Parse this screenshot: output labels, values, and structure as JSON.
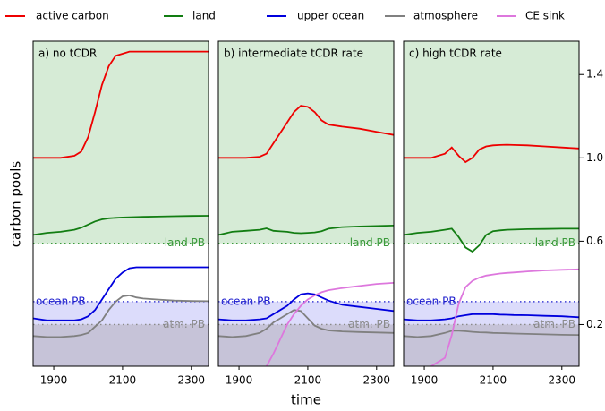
{
  "x_label": "time",
  "y_label": "carbon pools",
  "chart_data": [
    {
      "type": "line",
      "title": "a) no tCDR",
      "x": [
        1840,
        1880,
        1920,
        1960,
        1980,
        2000,
        2020,
        2040,
        2060,
        2080,
        2100,
        2120,
        2140,
        2160,
        2200,
        2250,
        2300,
        2350
      ],
      "xlim": [
        1840,
        2350
      ],
      "xticks": [
        1900,
        2100,
        2300
      ],
      "ylim": [
        0,
        1.56
      ],
      "boundaries": [
        {
          "label": "land PB",
          "value": 0.59,
          "color": "#3c9a3c",
          "fill": "#d6ebd6"
        },
        {
          "label": "ocean PB",
          "value": 0.31,
          "color": "#1a1acd",
          "fill": "#dcdcfb"
        },
        {
          "label": "atm. PB",
          "value": 0.2,
          "color": "#8a8a8a",
          "fill": "#c6c3d8"
        }
      ],
      "series": [
        {
          "color": "#ee0000",
          "values": [
            1.0,
            1.0,
            1.0,
            1.01,
            1.03,
            1.1,
            1.22,
            1.35,
            1.44,
            1.49,
            1.5,
            1.51,
            1.51,
            1.51,
            1.51,
            1.51,
            1.51,
            1.51
          ]
        },
        {
          "color": "#127d12",
          "values": [
            0.63,
            0.64,
            0.645,
            0.655,
            0.665,
            0.68,
            0.695,
            0.705,
            0.71,
            0.712,
            0.714,
            0.715,
            0.716,
            0.717,
            0.718,
            0.72,
            0.721,
            0.722
          ]
        },
        {
          "color": "#0000dd",
          "values": [
            0.23,
            0.22,
            0.22,
            0.22,
            0.225,
            0.24,
            0.27,
            0.32,
            0.37,
            0.42,
            0.45,
            0.47,
            0.475,
            0.475,
            0.475,
            0.475,
            0.475,
            0.475
          ]
        },
        {
          "color": "#808080",
          "values": [
            0.145,
            0.14,
            0.14,
            0.145,
            0.15,
            0.16,
            0.19,
            0.22,
            0.27,
            0.31,
            0.335,
            0.34,
            0.33,
            0.325,
            0.32,
            0.315,
            0.313,
            0.312
          ]
        },
        {
          "color": "#dd77dd",
          "values": [
            null,
            null,
            null,
            null,
            null,
            null,
            null,
            null,
            null,
            null,
            null,
            null,
            null,
            null,
            null,
            null,
            null,
            null
          ]
        }
      ]
    },
    {
      "type": "line",
      "title": "b) intermediate tCDR rate",
      "x": [
        1840,
        1880,
        1920,
        1960,
        1980,
        2000,
        2020,
        2040,
        2060,
        2080,
        2100,
        2120,
        2140,
        2160,
        2200,
        2250,
        2300,
        2350
      ],
      "xlim": [
        1840,
        2350
      ],
      "xticks": [
        1900,
        2100,
        2300
      ],
      "ylim": [
        0,
        1.56
      ],
      "boundaries": [
        {
          "label": "land PB",
          "value": 0.59,
          "color": "#3c9a3c",
          "fill": "#d6ebd6"
        },
        {
          "label": "ocean PB",
          "value": 0.31,
          "color": "#1a1acd",
          "fill": "#dcdcfb"
        },
        {
          "label": "atm. PB",
          "value": 0.2,
          "color": "#8a8a8a",
          "fill": "#c6c3d8"
        }
      ],
      "series": [
        {
          "color": "#ee0000",
          "values": [
            1.0,
            1.0,
            1.0,
            1.005,
            1.02,
            1.07,
            1.12,
            1.17,
            1.22,
            1.25,
            1.245,
            1.22,
            1.18,
            1.16,
            1.15,
            1.14,
            1.125,
            1.11
          ]
        },
        {
          "color": "#127d12",
          "values": [
            0.63,
            0.645,
            0.65,
            0.655,
            0.662,
            0.65,
            0.647,
            0.645,
            0.64,
            0.638,
            0.64,
            0.642,
            0.648,
            0.66,
            0.668,
            0.671,
            0.673,
            0.675
          ]
        },
        {
          "color": "#0000dd",
          "values": [
            0.225,
            0.22,
            0.22,
            0.225,
            0.23,
            0.25,
            0.27,
            0.29,
            0.32,
            0.345,
            0.35,
            0.345,
            0.33,
            0.315,
            0.295,
            0.285,
            0.275,
            0.265
          ]
        },
        {
          "color": "#808080",
          "values": [
            0.145,
            0.14,
            0.145,
            0.16,
            0.18,
            0.21,
            0.23,
            0.25,
            0.27,
            0.265,
            0.23,
            0.195,
            0.18,
            0.172,
            0.167,
            0.164,
            0.162,
            0.16
          ]
        },
        {
          "color": "#dd77dd",
          "values": [
            null,
            null,
            null,
            null,
            0.0,
            0.06,
            0.13,
            0.2,
            0.25,
            0.29,
            0.32,
            0.34,
            0.355,
            0.365,
            0.375,
            0.385,
            0.395,
            0.4
          ]
        }
      ]
    },
    {
      "type": "line",
      "title": "c) high tCDR rate",
      "x": [
        1840,
        1880,
        1920,
        1960,
        1980,
        2000,
        2020,
        2040,
        2060,
        2080,
        2100,
        2120,
        2140,
        2160,
        2200,
        2250,
        2300,
        2350
      ],
      "xlim": [
        1840,
        2350
      ],
      "xticks": [
        1900,
        2100,
        2300
      ],
      "ylim": [
        0,
        1.56
      ],
      "yticks": [
        0.2,
        0.6,
        {
          "value": 1,
          "label": "1.0"
        },
        1.4
      ],
      "boundaries": [
        {
          "label": "land PB",
          "value": 0.59,
          "color": "#3c9a3c",
          "fill": "#d6ebd6"
        },
        {
          "label": "ocean PB",
          "value": 0.31,
          "color": "#1a1acd",
          "fill": "#dcdcfb"
        },
        {
          "label": "atm. PB",
          "value": 0.2,
          "color": "#8a8a8a",
          "fill": "#c6c3d8"
        }
      ],
      "series": [
        {
          "name": "active carbon",
          "color": "#ee0000",
          "values": [
            1.0,
            1.0,
            1.0,
            1.02,
            1.05,
            1.01,
            0.98,
            1.0,
            1.04,
            1.055,
            1.06,
            1.062,
            1.063,
            1.062,
            1.06,
            1.055,
            1.05,
            1.045
          ]
        },
        {
          "name": "land",
          "color": "#127d12",
          "values": [
            0.63,
            0.64,
            0.645,
            0.655,
            0.66,
            0.62,
            0.57,
            0.55,
            0.58,
            0.63,
            0.648,
            0.652,
            0.655,
            0.656,
            0.658,
            0.659,
            0.66,
            0.66
          ]
        },
        {
          "name": "upper ocean",
          "color": "#0000dd",
          "values": [
            0.225,
            0.22,
            0.22,
            0.225,
            0.23,
            0.24,
            0.245,
            0.25,
            0.25,
            0.25,
            0.25,
            0.248,
            0.247,
            0.246,
            0.245,
            0.242,
            0.24,
            0.235
          ]
        },
        {
          "name": "atmosphere",
          "color": "#808080",
          "values": [
            0.145,
            0.14,
            0.145,
            0.16,
            0.17,
            0.17,
            0.168,
            0.165,
            0.163,
            0.162,
            0.16,
            0.159,
            0.158,
            0.157,
            0.155,
            0.153,
            0.151,
            0.15
          ]
        },
        {
          "name": "CE sink",
          "color": "#dd77dd",
          "values": [
            null,
            null,
            0.0,
            0.04,
            0.15,
            0.3,
            0.38,
            0.41,
            0.425,
            0.435,
            0.44,
            0.445,
            0.448,
            0.45,
            0.455,
            0.46,
            0.463,
            0.465
          ]
        }
      ]
    }
  ]
}
